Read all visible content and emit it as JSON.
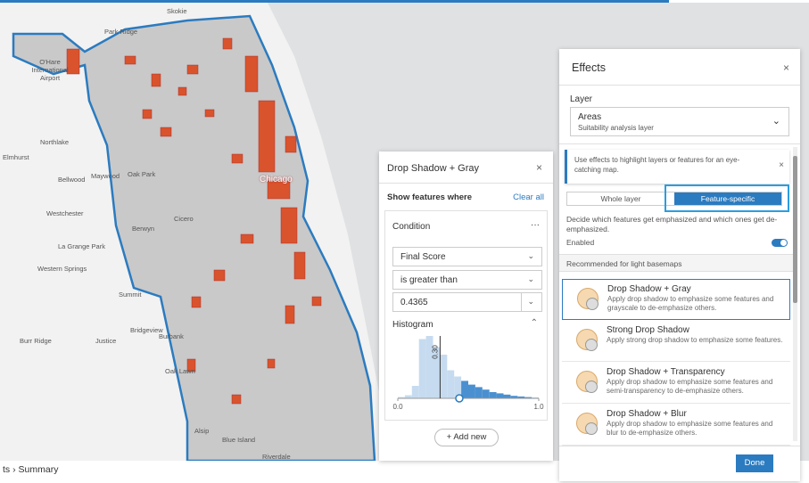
{
  "map": {
    "labels": [
      "Skokie",
      "Park Ridge",
      "O'Hare International Airport",
      "Northlake",
      "Elmhurst",
      "Bellwood",
      "Maywood",
      "Oak Park",
      "Westchester",
      "Berwyn",
      "Cicero",
      "La Grange Park",
      "Western Springs",
      "Summit",
      "Bridgeview",
      "Burbank",
      "Burr Ridge",
      "Justice",
      "Oak Lawn",
      "Alsip",
      "Blue Island",
      "Riverdale",
      "Chicago"
    ]
  },
  "filter_panel": {
    "title": "Drop Shadow + Gray",
    "close": "×",
    "heading": "Show features where",
    "clear": "Clear all",
    "condition": {
      "title": "Condition",
      "menu": "···",
      "field": "Final Score",
      "operator": "is greater than",
      "value": 0.4365,
      "histogram_title": "Histogram",
      "histogram": {
        "type": "histogram",
        "bins": [
          0,
          0.05,
          0.1,
          0.15,
          0.2,
          0.25,
          0.3,
          0.35,
          0.4,
          0.45,
          0.5,
          0.55,
          0.6,
          0.65,
          0.7,
          0.75,
          0.8,
          0.85,
          0.9,
          0.95,
          1
        ],
        "counts": [
          2,
          5,
          20,
          95,
          100,
          82,
          70,
          45,
          35,
          28,
          22,
          18,
          14,
          10,
          8,
          6,
          4,
          3,
          2,
          1
        ],
        "xlim": [
          0,
          1
        ],
        "xticks": [
          {
            "value": 0,
            "label": "0.0"
          },
          {
            "value": 1,
            "label": "1.0"
          }
        ],
        "reference": {
          "value": 0.3,
          "label": "0.30"
        },
        "colors": {
          "below": "#c6dbef",
          "above": "#4a90d0",
          "handle": "#2b7bc0"
        }
      }
    },
    "add": "+ Add new"
  },
  "effects_panel": {
    "title": "Effects",
    "close": "×",
    "layer_label": "Layer",
    "layer_name": "Areas",
    "layer_sub": "Suitability analysis layer",
    "info": "Use effects to highlight layers or features for an eye-catching map.",
    "tabs": [
      "Whole layer",
      "Feature-specific"
    ],
    "description": "Decide which features get emphasized and which ones get de-emphasized.",
    "enabled": "Enabled",
    "recommended": "Recommended for light basemaps",
    "items": [
      {
        "title": "Drop Shadow + Gray",
        "desc": "Apply drop shadow to emphasize some features and grayscale to de-emphasize others."
      },
      {
        "title": "Strong Drop Shadow",
        "desc": "Apply strong drop shadow to emphasize some features."
      },
      {
        "title": "Drop Shadow + Transparency",
        "desc": "Apply drop shadow to emphasize some features and semi-transparency to de-emphasize others."
      },
      {
        "title": "Drop Shadow + Blur",
        "desc": "Apply drop shadow to emphasize some features and blur to de-emphasize others."
      }
    ],
    "done": "Done"
  },
  "footer": {
    "breadcrumb": [
      "ts",
      "Summary"
    ]
  }
}
